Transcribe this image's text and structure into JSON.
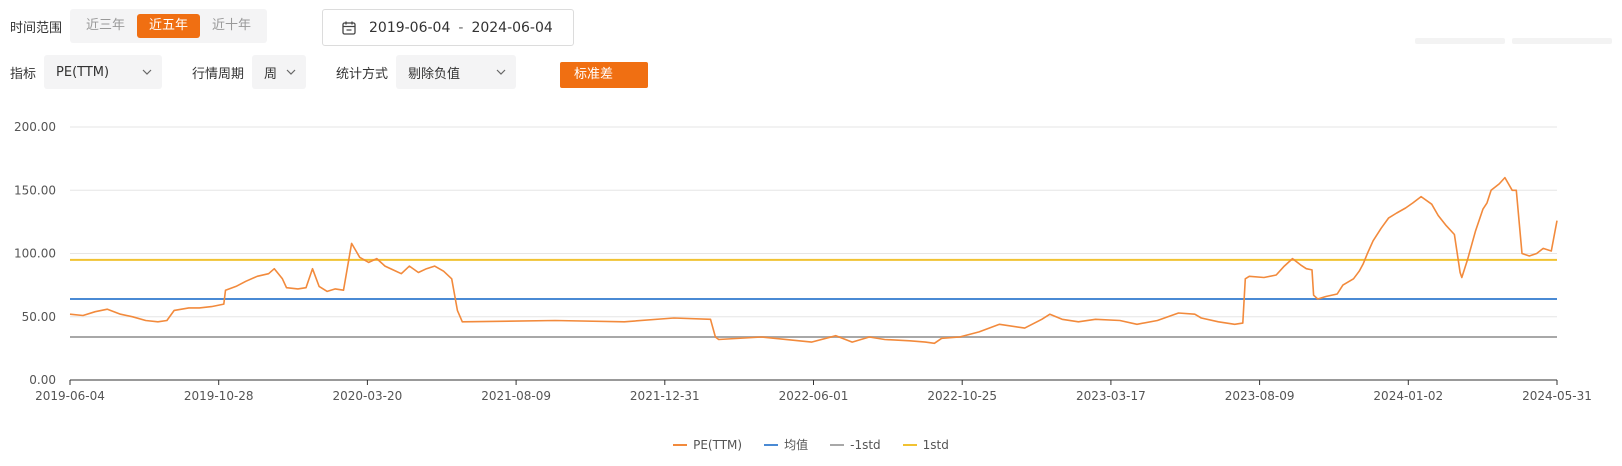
{
  "filters": {
    "range_label": "时间范围",
    "range_options": [
      "近三年",
      "近五年",
      "近十年"
    ],
    "range_active": 1,
    "date_start": "2019-06-04",
    "date_sep": "-",
    "date_end": "2024-06-04",
    "metric_label": "指标",
    "metric_value": "PE(TTM)",
    "period_label": "行情周期",
    "period_value": "周",
    "method_label": "统计方式",
    "method_value": "剔除负值",
    "std_button": "标准差"
  },
  "colors": {
    "accent": "#f06f12",
    "pe_line": "#f28a3c",
    "mean": "#4a8ad4",
    "minus1std": "#a8a8a8",
    "plus1std": "#f1c232"
  },
  "chart_data": {
    "type": "line",
    "x_tick_labels": [
      "2019-06-04",
      "2019-10-28",
      "2020-03-20",
      "2021-08-09",
      "2021-12-31",
      "2022-06-01",
      "2022-10-25",
      "2023-03-17",
      "2023-08-09",
      "2024-01-02",
      "2024-05-31"
    ],
    "y_tick_labels": [
      "0.00",
      "50.00",
      "100.00",
      "150.00",
      "200.00"
    ],
    "ylim": [
      0,
      200
    ],
    "x_start": "2019-06-04",
    "x_end": "2024-06-04",
    "grid": "horizontal",
    "legend_position": "bottom",
    "series": [
      {
        "name": "PE(TTM)",
        "points": [
          [
            "2019-06-04",
            52
          ],
          [
            "2019-06-20",
            51
          ],
          [
            "2019-07-05",
            54
          ],
          [
            "2019-07-20",
            56
          ],
          [
            "2019-08-05",
            52
          ],
          [
            "2019-08-20",
            50
          ],
          [
            "2019-09-05",
            47
          ],
          [
            "2019-09-20",
            46
          ],
          [
            "2019-10-01",
            47
          ],
          [
            "2019-10-10",
            55
          ],
          [
            "2019-10-28",
            57
          ],
          [
            "2019-11-10",
            57
          ],
          [
            "2019-11-25",
            58
          ],
          [
            "2019-12-10",
            60
          ],
          [
            "2019-12-12",
            71
          ],
          [
            "2019-12-25",
            74
          ],
          [
            "2020-01-06",
            78
          ],
          [
            "2020-01-20",
            82
          ],
          [
            "2020-02-03",
            84
          ],
          [
            "2020-02-10",
            88
          ],
          [
            "2020-02-20",
            80
          ],
          [
            "2020-02-25",
            73
          ],
          [
            "2020-03-10",
            72
          ],
          [
            "2020-03-20",
            73
          ],
          [
            "2020-03-28",
            88
          ],
          [
            "2020-04-05",
            74
          ],
          [
            "2020-04-15",
            70
          ],
          [
            "2020-04-25",
            72
          ],
          [
            "2020-05-05",
            71
          ],
          [
            "2020-05-15",
            108
          ],
          [
            "2020-05-25",
            97
          ],
          [
            "2020-06-05",
            93
          ],
          [
            "2020-06-15",
            96
          ],
          [
            "2020-06-25",
            90
          ],
          [
            "2020-07-05",
            87
          ],
          [
            "2020-07-15",
            84
          ],
          [
            "2020-07-25",
            90
          ],
          [
            "2020-08-05",
            85
          ],
          [
            "2020-08-15",
            88
          ],
          [
            "2020-08-25",
            90
          ],
          [
            "2020-09-05",
            86
          ],
          [
            "2020-09-15",
            80
          ],
          [
            "2020-09-22",
            55
          ],
          [
            "2020-09-28",
            46
          ],
          [
            "2021-01-20",
            47
          ],
          [
            "2021-04-15",
            46
          ],
          [
            "2021-06-15",
            49
          ],
          [
            "2021-07-30",
            48
          ],
          [
            "2021-08-05",
            34
          ],
          [
            "2021-08-09",
            32
          ],
          [
            "2021-10-01",
            34
          ],
          [
            "2021-12-01",
            30
          ],
          [
            "2021-12-31",
            35
          ],
          [
            "2022-01-20",
            30
          ],
          [
            "2022-02-10",
            34
          ],
          [
            "2022-03-01",
            32
          ],
          [
            "2022-04-01",
            31
          ],
          [
            "2022-04-20",
            30
          ],
          [
            "2022-05-01",
            29
          ],
          [
            "2022-05-10",
            33
          ],
          [
            "2022-06-01",
            34
          ],
          [
            "2022-06-25",
            38
          ],
          [
            "2022-07-20",
            44
          ],
          [
            "2022-08-20",
            41
          ],
          [
            "2022-09-10",
            48
          ],
          [
            "2022-09-20",
            52
          ],
          [
            "2022-10-05",
            48
          ],
          [
            "2022-10-25",
            46
          ],
          [
            "2022-11-15",
            48
          ],
          [
            "2022-12-15",
            47
          ],
          [
            "2023-01-05",
            44
          ],
          [
            "2023-01-30",
            47
          ],
          [
            "2023-02-25",
            53
          ],
          [
            "2023-03-17",
            52
          ],
          [
            "2023-03-25",
            49
          ],
          [
            "2023-04-15",
            46
          ],
          [
            "2023-05-05",
            44
          ],
          [
            "2023-05-15",
            45
          ],
          [
            "2023-05-18",
            80
          ],
          [
            "2023-05-23",
            82
          ],
          [
            "2023-06-10",
            81
          ],
          [
            "2023-06-25",
            83
          ],
          [
            "2023-07-05",
            90
          ],
          [
            "2023-07-15",
            96
          ],
          [
            "2023-07-25",
            91
          ],
          [
            "2023-08-01",
            88
          ],
          [
            "2023-08-08",
            87
          ],
          [
            "2023-08-10",
            67
          ],
          [
            "2023-08-15",
            64
          ],
          [
            "2023-08-25",
            66
          ],
          [
            "2023-09-08",
            68
          ],
          [
            "2023-09-15",
            75
          ],
          [
            "2023-09-28",
            80
          ],
          [
            "2023-10-05",
            86
          ],
          [
            "2023-10-10",
            92
          ],
          [
            "2023-10-15",
            100
          ],
          [
            "2023-10-22",
            110
          ],
          [
            "2023-11-01",
            120
          ],
          [
            "2023-11-10",
            128
          ],
          [
            "2023-11-20",
            132
          ],
          [
            "2023-12-01",
            136
          ],
          [
            "2023-12-10",
            140
          ],
          [
            "2023-12-20",
            145
          ],
          [
            "2024-01-02",
            139
          ],
          [
            "2024-01-10",
            130
          ],
          [
            "2024-01-20",
            122
          ],
          [
            "2024-01-30",
            115
          ],
          [
            "2024-02-06",
            85
          ],
          [
            "2024-02-08",
            81
          ],
          [
            "2024-02-15",
            95
          ],
          [
            "2024-02-25",
            118
          ],
          [
            "2024-03-05",
            135
          ],
          [
            "2024-03-10",
            140
          ],
          [
            "2024-03-15",
            150
          ],
          [
            "2024-03-25",
            155
          ],
          [
            "2024-04-01",
            160
          ],
          [
            "2024-04-10",
            150
          ],
          [
            "2024-04-15",
            150
          ],
          [
            "2024-04-22",
            100
          ],
          [
            "2024-05-01",
            98
          ],
          [
            "2024-05-10",
            100
          ],
          [
            "2024-05-18",
            104
          ],
          [
            "2024-05-28",
            102
          ],
          [
            "2024-06-04",
            126
          ]
        ]
      },
      {
        "name": "均值",
        "value": 64
      },
      {
        "name": "-1std",
        "value": 34
      },
      {
        "name": "1std",
        "value": 95
      }
    ]
  }
}
